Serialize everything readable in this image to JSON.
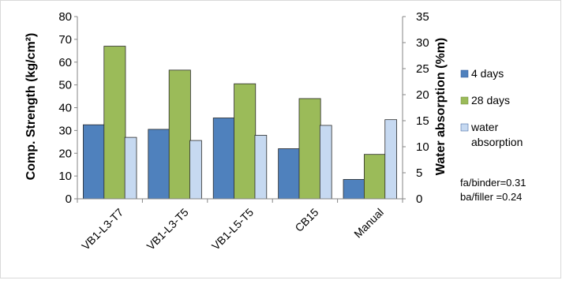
{
  "chart_data": {
    "type": "bar",
    "categories": [
      "VB1-L3-T7",
      "VB1-L3-T5",
      "VB1-L5-T5",
      "CB15",
      "Manual"
    ],
    "series": [
      {
        "name": "4 days",
        "axis": "left",
        "color": "#4f81bd",
        "values": [
          32.5,
          30.5,
          35.5,
          22,
          8.5
        ]
      },
      {
        "name": "28 days",
        "axis": "left",
        "color": "#9bbb59",
        "values": [
          67,
          56.5,
          50.5,
          44,
          19.5
        ]
      },
      {
        "name": "water absorption",
        "axis": "right",
        "color": "#c6d9f1",
        "values": [
          11.8,
          11.2,
          12.2,
          14.1,
          15.2
        ]
      }
    ],
    "ylabel": "Comp. Strength (kg/cm²)",
    "y2label": "Water absorption (%m)",
    "ylim": [
      0,
      80
    ],
    "y2lim": [
      0,
      35
    ],
    "yticks": [
      "0",
      "10",
      "20",
      "30",
      "40",
      "50",
      "60",
      "70",
      "80"
    ],
    "y2ticks": [
      "0",
      "5",
      "10",
      "15",
      "20",
      "25",
      "30",
      "35"
    ],
    "legend": {
      "position": "right",
      "entries": [
        "4 days",
        "28 days",
        "water",
        "absorption"
      ]
    },
    "annotations": [
      "fa/binder=0.31",
      "ba/filler =0.24"
    ],
    "grid": false
  }
}
